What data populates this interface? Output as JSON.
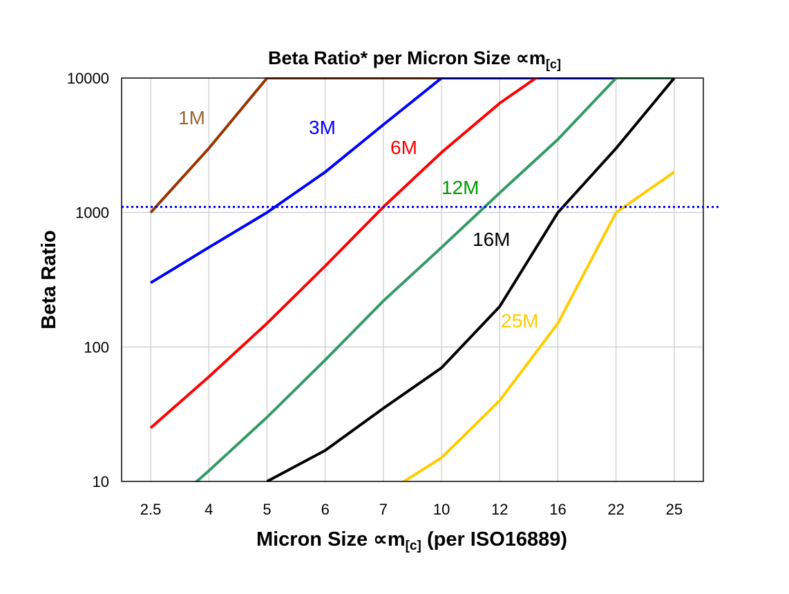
{
  "chart_data": {
    "type": "line",
    "title": "Beta Ratio* per Micron Size ∝m",
    "title_subscript": "[c]",
    "xlabel": "Micron Size ∝m",
    "xlabel_subscript": "[c]",
    "xlabel_suffix": " (per ISO16889)",
    "ylabel": "Beta Ratio",
    "y_scale": "log",
    "ylim": [
      10,
      10000
    ],
    "y_ticks": [
      "10",
      "100",
      "1000",
      "10000"
    ],
    "categories": [
      "2.5",
      "4",
      "5",
      "6",
      "7",
      "10",
      "12",
      "16",
      "22",
      "25"
    ],
    "grid": true,
    "reference_line": {
      "value": 1100,
      "color": "#0000ff",
      "style": "dotted"
    },
    "series": [
      {
        "name": "1M",
        "color": "#993300",
        "label_color": "#996633",
        "values": [
          1000,
          3000,
          10000,
          10000,
          10000,
          10000,
          10000,
          10000,
          10000,
          10000
        ]
      },
      {
        "name": "3M",
        "color": "#0000ff",
        "label_color": "#0000ff",
        "values": [
          300,
          550,
          1000,
          2000,
          4500,
          10000,
          10000,
          10000,
          10000,
          10000
        ]
      },
      {
        "name": "6M",
        "color": "#ff0000",
        "label_color": "#ff0000",
        "values": [
          25,
          60,
          150,
          400,
          1100,
          2800,
          6500,
          13000,
          13000,
          13000
        ]
      },
      {
        "name": "12M",
        "color": "#339966",
        "label_color": "#009900",
        "values": [
          5,
          12,
          30,
          80,
          220,
          550,
          1400,
          3500,
          10000,
          10000
        ]
      },
      {
        "name": "16M",
        "color": "#000000",
        "label_color": "#000000",
        "values": [
          null,
          null,
          10,
          17,
          35,
          70,
          200,
          1000,
          3000,
          10000
        ]
      },
      {
        "name": "25M",
        "color": "#ffcc00",
        "label_color": "#ffcc00",
        "values": [
          null,
          null,
          null,
          null,
          8,
          15,
          40,
          150,
          1000,
          2000
        ]
      }
    ]
  }
}
